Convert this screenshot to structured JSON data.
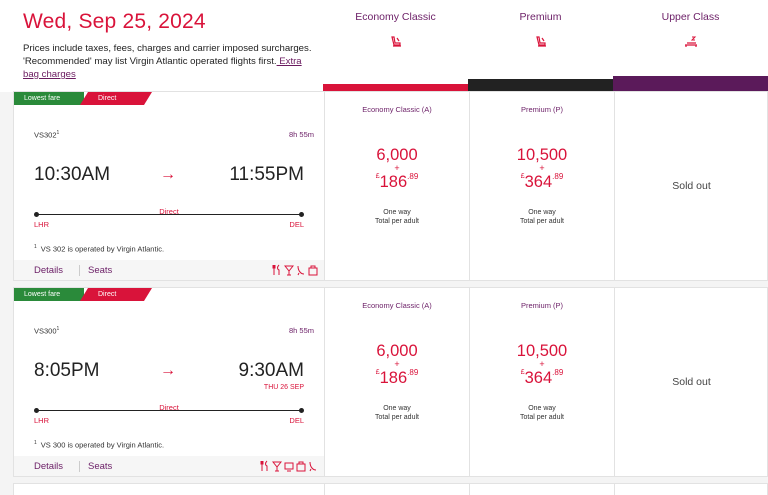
{
  "header": {
    "date": "Wed, Sep 25, 2024",
    "note": "Prices include taxes, fees, charges and carrier imposed surcharges. 'Recommended' may list Virgin Atlantic operated flights first.",
    "note_link": " Extra bag charges"
  },
  "cabins": [
    {
      "name": "Economy Classic",
      "icon": "seat-icon",
      "color": "#d9133a"
    },
    {
      "name": "Premium",
      "icon": "seat-icon",
      "color": "#222222"
    },
    {
      "name": "Upper Class",
      "icon": "flatbed-icon",
      "color": "#5b1a5a"
    }
  ],
  "badges": {
    "lowest": "Lowest fare",
    "direct": "Direct"
  },
  "flights": [
    {
      "number": "VS302",
      "sup": "1",
      "duration": "8h 55m",
      "dep_time": "10:30AM",
      "arr_time": "11:55PM",
      "next_day": "",
      "arrow": "→",
      "stop_label": "Direct",
      "from": "LHR",
      "to": "DEL",
      "op_sup": "1",
      "op_note": "VS 302 is operated by Virgin Atlantic.",
      "details": "Details",
      "seats": "Seats",
      "amenities": [
        "meal-icon",
        "drink-icon",
        "wifi-icon",
        "bag-icon"
      ],
      "fares": [
        {
          "class": "Economy Classic (A)",
          "points": "6,000",
          "plus": "+",
          "currency": "£",
          "cash": "186",
          "cents": ".89",
          "oneway": "One way",
          "per": "Total per adult"
        },
        {
          "class": "Premium (P)",
          "points": "10,500",
          "plus": "+",
          "currency": "£",
          "cash": "364",
          "cents": ".89",
          "oneway": "One way",
          "per": "Total per adult"
        }
      ],
      "sold_out": "Sold out"
    },
    {
      "number": "VS300",
      "sup": "1",
      "duration": "8h 55m",
      "dep_time": "8:05PM",
      "arr_time": "9:30AM",
      "next_day": "THU 26 SEP",
      "arrow": "→",
      "stop_label": "Direct",
      "from": "LHR",
      "to": "DEL",
      "op_sup": "1",
      "op_note": "VS 300 is operated by Virgin Atlantic.",
      "details": "Details",
      "seats": "Seats",
      "amenities": [
        "meal-icon",
        "drink-icon",
        "entertainment-icon",
        "bag-icon",
        "wifi-icon"
      ],
      "fares": [
        {
          "class": "Economy Classic (A)",
          "points": "6,000",
          "plus": "+",
          "currency": "£",
          "cash": "186",
          "cents": ".89",
          "oneway": "One way",
          "per": "Total per adult"
        },
        {
          "class": "Premium (P)",
          "points": "10,500",
          "plus": "+",
          "currency": "£",
          "cash": "364",
          "cents": ".89",
          "oneway": "One way",
          "per": "Total per adult"
        }
      ],
      "sold_out": "Sold out"
    }
  ]
}
